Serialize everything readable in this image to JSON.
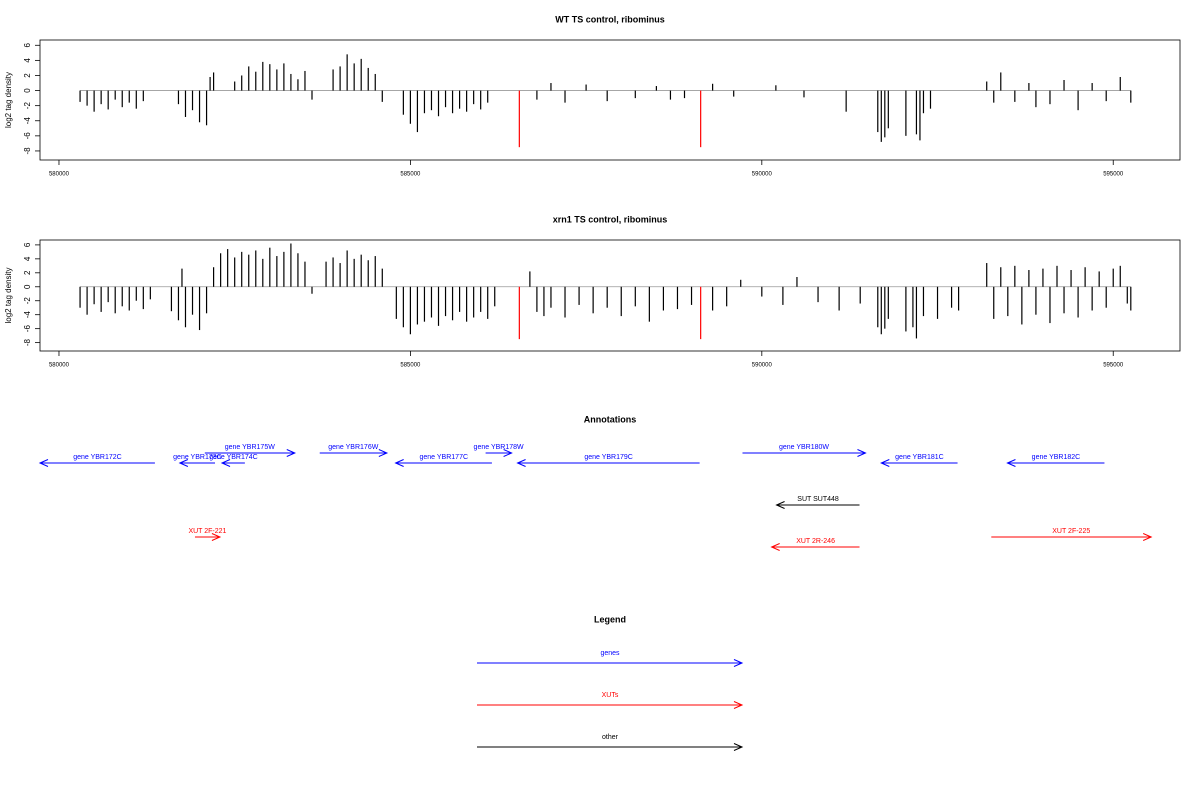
{
  "chart_data": [
    {
      "type": "bar",
      "title": "WT TS control, ribominus",
      "y_label": "log2 tag density",
      "xlim": [
        579730,
        595950
      ],
      "xticks": [
        580000,
        585000,
        590000,
        595000
      ],
      "ylim": [
        -9.2,
        6.7
      ],
      "yticks": [
        -8,
        -6,
        -4,
        -2,
        0,
        2,
        4,
        6
      ],
      "series": [
        {
          "color": "#000000",
          "x": [
            580300,
            580400,
            580500,
            580600,
            580700,
            580800,
            580900,
            581000,
            581100,
            581200,
            581700,
            581800,
            581900,
            582000,
            582100,
            582150,
            582200,
            582500,
            582600,
            582700,
            582800,
            582900,
            583000,
            583100,
            583200,
            583300,
            583400,
            583500,
            583600,
            583900,
            584000,
            584100,
            584200,
            584300,
            584400,
            584500,
            584600,
            584900,
            585000,
            585100,
            585200,
            585300,
            585400,
            585500,
            585600,
            585700,
            585800,
            585900,
            586000,
            586100,
            586800,
            587000,
            587200,
            587500,
            587800,
            588200,
            588500,
            588700,
            588900,
            589300,
            589600,
            590200,
            590600,
            591200,
            591650,
            591700,
            591750,
            591800,
            592050,
            592200,
            592250,
            592300,
            592400,
            593200,
            593300,
            593400,
            593600,
            593800,
            593900,
            594100,
            594300,
            594500,
            594700,
            594900,
            595100,
            595250
          ],
          "values": [
            -1.5,
            -2,
            -2.8,
            -1.8,
            -2.5,
            -1.2,
            -2.2,
            -1.6,
            -2.4,
            -1.4,
            -1.8,
            -3.5,
            -2.6,
            -4.2,
            -4.6,
            1.8,
            2.4,
            1.2,
            2.0,
            3.2,
            2.5,
            3.8,
            3.5,
            2.8,
            3.6,
            2.2,
            1.5,
            2.6,
            -1.2,
            2.8,
            3.2,
            4.8,
            3.6,
            4.2,
            3.0,
            2.2,
            -1.5,
            -3.2,
            -4.4,
            -5.5,
            -3.0,
            -2.6,
            -3.4,
            -2.2,
            -3.0,
            -2.4,
            -2.8,
            -1.8,
            -2.5,
            -1.6,
            -1.2,
            1.0,
            -1.6,
            0.8,
            -1.4,
            -1.0,
            0.6,
            -1.2,
            -1.0,
            0.9,
            -0.8,
            0.7,
            -0.9,
            -2.8,
            -5.5,
            -6.8,
            -6.2,
            -5.0,
            -6.0,
            -5.8,
            -6.6,
            -3.0,
            -2.4,
            1.2,
            -1.6,
            2.4,
            -1.5,
            1.0,
            -2.2,
            -1.8,
            1.4,
            -2.6,
            1.0,
            -1.4,
            1.8,
            -1.6
          ]
        },
        {
          "color": "#ff0000",
          "x": [
            586550,
            589130
          ],
          "values": [
            -7.5,
            -7.5
          ]
        }
      ]
    },
    {
      "type": "bar",
      "title": "xrn1 TS control, ribominus",
      "y_label": "log2 tag density",
      "xlim": [
        579730,
        595950
      ],
      "xticks": [
        580000,
        585000,
        590000,
        595000
      ],
      "ylim": [
        -9.2,
        6.7
      ],
      "yticks": [
        -8,
        -6,
        -4,
        -2,
        0,
        2,
        4,
        6
      ],
      "series": [
        {
          "color": "#000000",
          "x": [
            580300,
            580400,
            580500,
            580600,
            580700,
            580800,
            580900,
            581000,
            581100,
            581200,
            581300,
            581600,
            581700,
            581750,
            581800,
            581900,
            582000,
            582100,
            582200,
            582300,
            582400,
            582500,
            582600,
            582700,
            582800,
            582900,
            583000,
            583100,
            583200,
            583300,
            583400,
            583500,
            583600,
            583800,
            583900,
            584000,
            584100,
            584200,
            584300,
            584400,
            584500,
            584600,
            584800,
            584900,
            585000,
            585100,
            585200,
            585300,
            585400,
            585500,
            585600,
            585700,
            585800,
            585900,
            586000,
            586100,
            586200,
            586700,
            586800,
            586900,
            587000,
            587200,
            587400,
            587600,
            587800,
            588000,
            588200,
            588400,
            588600,
            588800,
            589000,
            589300,
            589500,
            589700,
            590000,
            590300,
            590500,
            590800,
            591100,
            591400,
            591650,
            591700,
            591750,
            591800,
            592050,
            592150,
            592200,
            592300,
            592500,
            592700,
            592800,
            593200,
            593300,
            593400,
            593500,
            593600,
            593700,
            593800,
            593900,
            594000,
            594100,
            594200,
            594300,
            594400,
            594500,
            594600,
            594700,
            594800,
            594900,
            595000,
            595100,
            595200,
            595250
          ],
          "values": [
            -3.0,
            -4.0,
            -2.5,
            -3.6,
            -2.2,
            -3.8,
            -2.8,
            -3.4,
            -2.0,
            -3.2,
            -1.8,
            -3.5,
            -4.8,
            2.6,
            -5.8,
            -4.0,
            -6.2,
            -3.8,
            2.8,
            4.8,
            5.4,
            4.2,
            5.0,
            4.6,
            5.2,
            4.0,
            5.6,
            4.4,
            5.0,
            6.2,
            4.8,
            3.6,
            -1.0,
            3.6,
            4.2,
            3.4,
            5.2,
            4.0,
            4.6,
            3.8,
            4.4,
            2.6,
            -4.6,
            -5.8,
            -6.8,
            -5.4,
            -5.0,
            -4.4,
            -5.6,
            -4.2,
            -4.8,
            -3.6,
            -5.0,
            -4.4,
            -3.6,
            -4.6,
            -2.8,
            2.2,
            -3.6,
            -4.2,
            -3.0,
            -4.4,
            -2.6,
            -3.8,
            -3.0,
            -4.2,
            -2.8,
            -5.0,
            -3.4,
            -3.2,
            -2.6,
            -3.4,
            -2.8,
            1.0,
            -1.4,
            -2.6,
            1.4,
            -2.2,
            -3.4,
            -2.4,
            -5.8,
            -6.8,
            -6.0,
            -4.6,
            -6.4,
            -5.8,
            -7.4,
            -4.2,
            -4.6,
            -3.0,
            -3.4,
            3.4,
            -4.6,
            2.8,
            -4.2,
            3.0,
            -5.4,
            2.4,
            -4.0,
            2.6,
            -5.2,
            3.0,
            -3.8,
            2.4,
            -4.4,
            2.8,
            -3.4,
            2.2,
            -3.0,
            2.6,
            3.0,
            -2.4,
            -3.4
          ]
        },
        {
          "color": "#ff0000",
          "x": [
            586550,
            589130
          ],
          "values": [
            -7.5,
            -7.5
          ]
        }
      ]
    }
  ],
  "annotations": {
    "title": "Annotations",
    "features": [
      {
        "label": "gene YBR172C",
        "group": "genes",
        "strand": "-",
        "start": 579730,
        "end": 581365
      },
      {
        "label": "gene YBR173C",
        "group": "genes",
        "strand": "-",
        "start": 581720,
        "end": 582220
      },
      {
        "label": "gene YBR174C",
        "group": "genes",
        "strand": "-",
        "start": 582320,
        "end": 582645
      },
      {
        "label": "gene YBR175W",
        "group": "genes",
        "strand": "+",
        "start": 582075,
        "end": 583355
      },
      {
        "label": "gene YBR176W",
        "group": "genes",
        "strand": "+",
        "start": 583710,
        "end": 584665
      },
      {
        "label": "gene YBR177C",
        "group": "genes",
        "strand": "-",
        "start": 584790,
        "end": 586160
      },
      {
        "label": "gene YBR178W",
        "group": "genes",
        "strand": "+",
        "start": 586070,
        "end": 586440
      },
      {
        "label": "gene YBR179C",
        "group": "genes",
        "strand": "-",
        "start": 586525,
        "end": 589115
      },
      {
        "label": "gene YBR180W",
        "group": "genes",
        "strand": "+",
        "start": 589725,
        "end": 591475
      },
      {
        "label": "gene YBR181C",
        "group": "genes",
        "strand": "-",
        "start": 591700,
        "end": 592785
      },
      {
        "label": "gene YBR182C",
        "group": "genes",
        "strand": "-",
        "start": 593495,
        "end": 594875
      },
      {
        "label": "SUT SUT448",
        "group": "other",
        "strand": "-",
        "start": 590210,
        "end": 591390
      },
      {
        "label": "XUT 2F-221",
        "group": "XUTs",
        "strand": "+",
        "start": 581935,
        "end": 582290
      },
      {
        "label": "XUT 2R-246",
        "group": "XUTs",
        "strand": "-",
        "start": 590140,
        "end": 591390
      },
      {
        "label": "XUT 2F-225",
        "group": "XUTs",
        "strand": "+",
        "start": 593265,
        "end": 595540
      }
    ]
  },
  "legend": {
    "title": "Legend",
    "items": [
      {
        "label": "genes",
        "color": "#0000ff"
      },
      {
        "label": "XUTs",
        "color": "#ff0000"
      },
      {
        "label": "other",
        "color": "#000000"
      }
    ]
  }
}
